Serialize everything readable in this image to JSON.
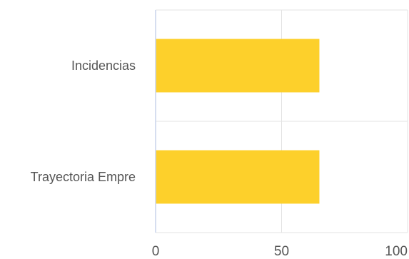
{
  "chart_data": {
    "type": "bar",
    "orientation": "horizontal",
    "categories": [
      "Incidencias",
      "Trayectoria Empre"
    ],
    "values": [
      65,
      65
    ],
    "xlim": [
      0,
      100
    ],
    "x_ticks": [
      0,
      50,
      100
    ],
    "x_tick_labels": [
      "0",
      "50",
      "100"
    ],
    "grid": true,
    "legend": "none",
    "bar_color": "#FDD02B",
    "grid_color": "#E3E3E3",
    "axis_color": "#C9D4EC"
  }
}
